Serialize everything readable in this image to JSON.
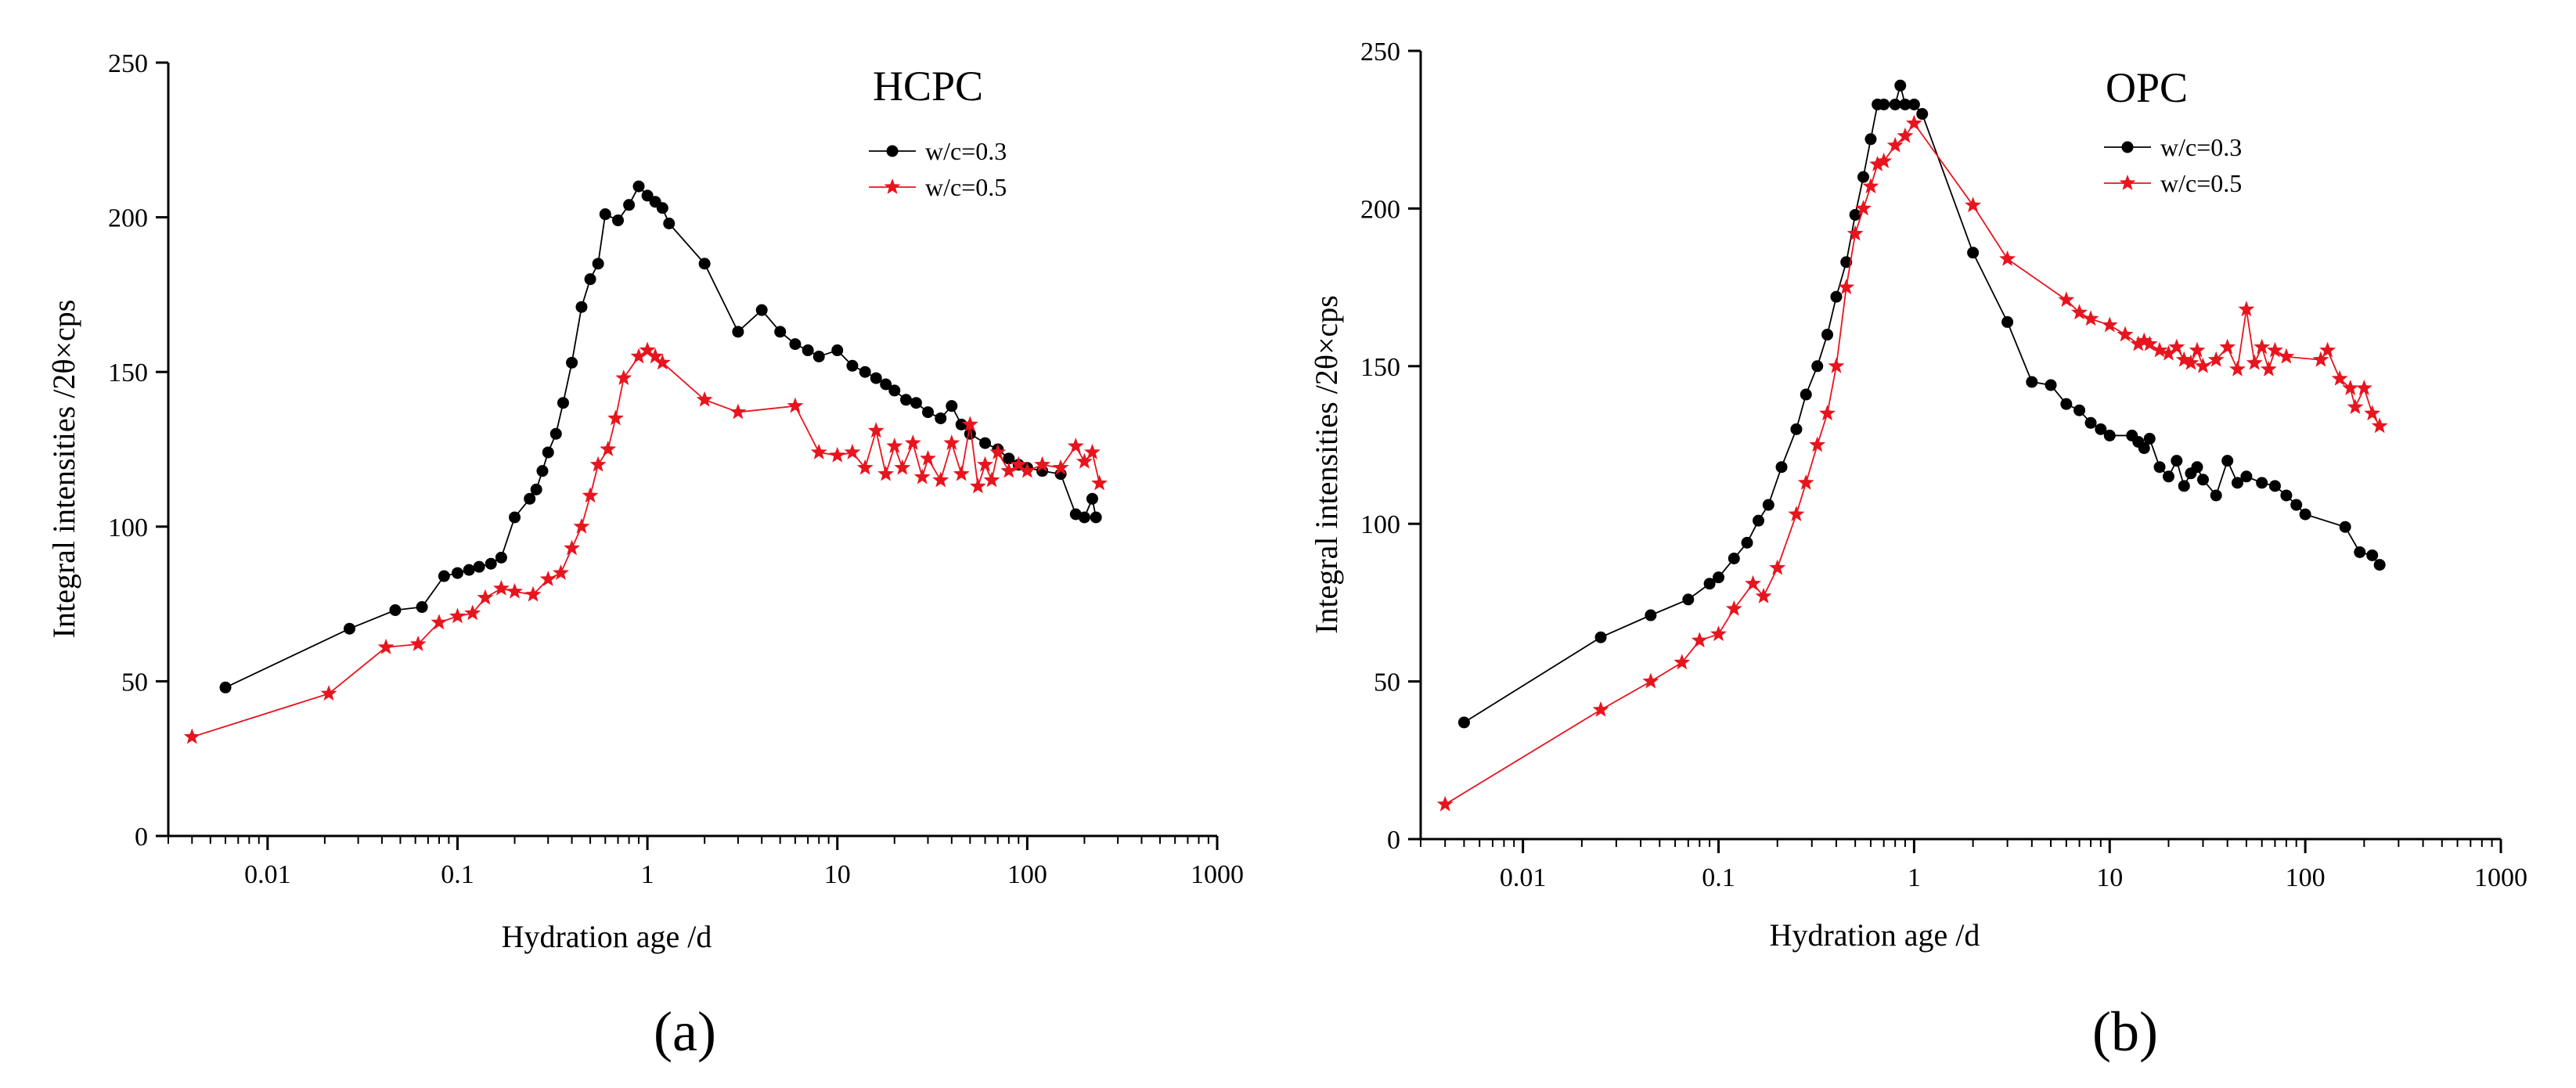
{
  "chart_data": [
    {
      "type": "line",
      "title": "HCPC",
      "caption": "(a)",
      "xlabel": "Hydration age /d",
      "ylabel": "Integral intensities /2θ×cps",
      "xscale": "log",
      "xlim": [
        0.003,
        1000
      ],
      "ylim": [
        0,
        250
      ],
      "xticks": [
        "0.01",
        "0.1",
        "1",
        "10",
        "100",
        "1000"
      ],
      "yticks": [
        "0",
        "50",
        "100",
        "150",
        "200",
        "250"
      ],
      "grid": false,
      "legend": "top-right",
      "series": [
        {
          "name": "w/c=0.3",
          "color": "#000000",
          "marker": "circle",
          "points": [
            [
              0.006,
              48
            ],
            [
              0.027,
              67
            ],
            [
              0.047,
              73
            ],
            [
              0.065,
              74
            ],
            [
              0.085,
              84
            ],
            [
              0.1,
              85
            ],
            [
              0.115,
              86
            ],
            [
              0.13,
              87
            ],
            [
              0.15,
              88
            ],
            [
              0.17,
              90
            ],
            [
              0.2,
              103
            ],
            [
              0.24,
              109
            ],
            [
              0.26,
              112
            ],
            [
              0.28,
              118
            ],
            [
              0.3,
              124
            ],
            [
              0.33,
              130
            ],
            [
              0.36,
              140
            ],
            [
              0.4,
              153
            ],
            [
              0.45,
              171
            ],
            [
              0.5,
              180
            ],
            [
              0.55,
              185
            ],
            [
              0.6,
              201
            ],
            [
              0.7,
              199
            ],
            [
              0.8,
              204
            ],
            [
              0.9,
              210
            ],
            [
              1.0,
              207
            ],
            [
              1.1,
              205
            ],
            [
              1.2,
              203
            ],
            [
              1.3,
              198
            ],
            [
              2.0,
              185
            ],
            [
              3.0,
              163
            ],
            [
              4.0,
              170
            ],
            [
              5.0,
              163
            ],
            [
              6.0,
              159
            ],
            [
              7.0,
              157
            ],
            [
              8.0,
              155
            ],
            [
              10,
              157
            ],
            [
              12,
              152
            ],
            [
              14,
              150
            ],
            [
              16,
              148
            ],
            [
              18,
              146
            ],
            [
              20,
              144
            ],
            [
              23,
              141
            ],
            [
              26,
              140
            ],
            [
              30,
              137
            ],
            [
              35,
              135
            ],
            [
              40,
              139
            ],
            [
              45,
              133
            ],
            [
              50,
              130
            ],
            [
              60,
              127
            ],
            [
              70,
              125
            ],
            [
              80,
              122
            ],
            [
              90,
              120
            ],
            [
              100,
              119
            ],
            [
              120,
              118
            ],
            [
              150,
              117
            ],
            [
              180,
              104
            ],
            [
              200,
              103
            ],
            [
              220,
              109
            ],
            [
              230,
              103
            ]
          ]
        },
        {
          "name": "w/c=0.5",
          "color": "#e8141e",
          "marker": "star",
          "points": [
            [
              0.004,
              32
            ],
            [
              0.021,
              46
            ],
            [
              0.042,
              61
            ],
            [
              0.062,
              62
            ],
            [
              0.08,
              69
            ],
            [
              0.1,
              71
            ],
            [
              0.12,
              72
            ],
            [
              0.14,
              77
            ],
            [
              0.17,
              80
            ],
            [
              0.2,
              79
            ],
            [
              0.25,
              78
            ],
            [
              0.3,
              83
            ],
            [
              0.35,
              85
            ],
            [
              0.4,
              93
            ],
            [
              0.45,
              100
            ],
            [
              0.5,
              110
            ],
            [
              0.55,
              120
            ],
            [
              0.62,
              125
            ],
            [
              0.68,
              135
            ],
            [
              0.75,
              148
            ],
            [
              0.9,
              155
            ],
            [
              1.0,
              157
            ],
            [
              1.1,
              155
            ],
            [
              1.2,
              153
            ],
            [
              2.0,
              141
            ],
            [
              3.0,
              137
            ],
            [
              6.0,
              139
            ],
            [
              8.0,
              124
            ],
            [
              10,
              123
            ],
            [
              12,
              124
            ],
            [
              14,
              119
            ],
            [
              16,
              131
            ],
            [
              18,
              117
            ],
            [
              20,
              126
            ],
            [
              22,
              119
            ],
            [
              25,
              127
            ],
            [
              28,
              116
            ],
            [
              30,
              122
            ],
            [
              35,
              115
            ],
            [
              40,
              127
            ],
            [
              45,
              117
            ],
            [
              50,
              133
            ],
            [
              55,
              113
            ],
            [
              60,
              120
            ],
            [
              65,
              115
            ],
            [
              70,
              124
            ],
            [
              80,
              118
            ],
            [
              90,
              120
            ],
            [
              100,
              118
            ],
            [
              120,
              120
            ],
            [
              150,
              119
            ],
            [
              180,
              126
            ],
            [
              200,
              121
            ],
            [
              220,
              124
            ],
            [
              240,
              114
            ]
          ]
        }
      ]
    },
    {
      "type": "line",
      "title": "OPC",
      "caption": "(b)",
      "xlabel": "Hydration age /d",
      "ylabel": "Integral intensities /2θ×cps",
      "xscale": "log",
      "xlim": [
        0.003,
        1000
      ],
      "ylim": [
        0,
        250
      ],
      "xticks": [
        "0.01",
        "0.1",
        "1",
        "10",
        "100",
        "1000"
      ],
      "yticks": [
        "0",
        "50",
        "100",
        "150",
        "200",
        "250"
      ],
      "grid": false,
      "legend": "top-right",
      "series": [
        {
          "name": "w/c=0.3",
          "color": "#000000",
          "marker": "circle",
          "points": [
            [
              0.005,
              37
            ],
            [
              0.025,
              64
            ],
            [
              0.045,
              71
            ],
            [
              0.07,
              76
            ],
            [
              0.09,
              81
            ],
            [
              0.1,
              83
            ],
            [
              0.12,
              89
            ],
            [
              0.14,
              94
            ],
            [
              0.16,
              101
            ],
            [
              0.18,
              106
            ],
            [
              0.21,
              118
            ],
            [
              0.25,
              130
            ],
            [
              0.28,
              141
            ],
            [
              0.32,
              150
            ],
            [
              0.36,
              160
            ],
            [
              0.4,
              172
            ],
            [
              0.45,
              183
            ],
            [
              0.5,
              198
            ],
            [
              0.55,
              210
            ],
            [
              0.6,
              222
            ],
            [
              0.65,
              233
            ],
            [
              0.7,
              233
            ],
            [
              0.8,
              233
            ],
            [
              0.85,
              239
            ],
            [
              0.9,
              233
            ],
            [
              1.0,
              233
            ],
            [
              1.1,
              230
            ],
            [
              2.0,
              186
            ],
            [
              3.0,
              164
            ],
            [
              4.0,
              145
            ],
            [
              5.0,
              144
            ],
            [
              6.0,
              138
            ],
            [
              7.0,
              136
            ],
            [
              8.0,
              132
            ],
            [
              9.0,
              130
            ],
            [
              10,
              128
            ],
            [
              13,
              128
            ],
            [
              14,
              126
            ],
            [
              15,
              124
            ],
            [
              16,
              127
            ],
            [
              18,
              118
            ],
            [
              20,
              115
            ],
            [
              22,
              120
            ],
            [
              24,
              112
            ],
            [
              26,
              116
            ],
            [
              28,
              118
            ],
            [
              30,
              114
            ],
            [
              35,
              109
            ],
            [
              40,
              120
            ],
            [
              45,
              113
            ],
            [
              50,
              115
            ],
            [
              60,
              113
            ],
            [
              70,
              112
            ],
            [
              80,
              109
            ],
            [
              90,
              106
            ],
            [
              100,
              103
            ],
            [
              160,
              99
            ],
            [
              190,
              91
            ],
            [
              220,
              90
            ],
            [
              240,
              87
            ]
          ]
        },
        {
          "name": "w/c=0.5",
          "color": "#e8141e",
          "marker": "star",
          "points": [
            [
              0.004,
              11
            ],
            [
              0.025,
              41
            ],
            [
              0.045,
              50
            ],
            [
              0.065,
              56
            ],
            [
              0.08,
              63
            ],
            [
              0.1,
              65
            ],
            [
              0.12,
              73
            ],
            [
              0.15,
              81
            ],
            [
              0.17,
              77
            ],
            [
              0.2,
              86
            ],
            [
              0.25,
              103
            ],
            [
              0.28,
              113
            ],
            [
              0.32,
              125
            ],
            [
              0.36,
              135
            ],
            [
              0.4,
              150
            ],
            [
              0.45,
              175
            ],
            [
              0.5,
              192
            ],
            [
              0.55,
              200
            ],
            [
              0.6,
              207
            ],
            [
              0.65,
              214
            ],
            [
              0.7,
              215
            ],
            [
              0.8,
              220
            ],
            [
              0.9,
              223
            ],
            [
              1.0,
              227
            ],
            [
              2.0,
              201
            ],
            [
              3.0,
              184
            ],
            [
              6.0,
              171
            ],
            [
              7.0,
              167
            ],
            [
              8.0,
              165
            ],
            [
              10,
              163
            ],
            [
              12,
              160
            ],
            [
              14,
              157
            ],
            [
              15,
              158
            ],
            [
              16,
              157
            ],
            [
              18,
              155
            ],
            [
              20,
              154
            ],
            [
              22,
              156
            ],
            [
              24,
              152
            ],
            [
              26,
              151
            ],
            [
              28,
              155
            ],
            [
              30,
              150
            ],
            [
              35,
              152
            ],
            [
              40,
              156
            ],
            [
              45,
              149
            ],
            [
              50,
              168
            ],
            [
              55,
              151
            ],
            [
              60,
              156
            ],
            [
              65,
              149
            ],
            [
              70,
              155
            ],
            [
              80,
              153
            ],
            [
              120,
              152
            ],
            [
              130,
              155
            ],
            [
              150,
              146
            ],
            [
              170,
              143
            ],
            [
              180,
              137
            ],
            [
              200,
              143
            ],
            [
              220,
              135
            ],
            [
              240,
              131
            ]
          ]
        }
      ]
    }
  ]
}
